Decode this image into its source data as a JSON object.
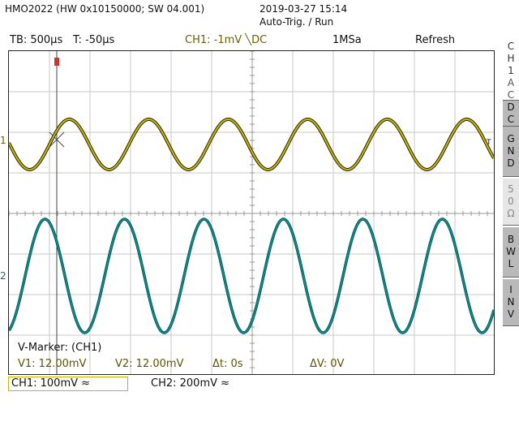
{
  "header": {
    "device": "HMO2022 (HW 0x10150000; SW 04.001)",
    "datetime": "2019-03-27 15:14",
    "trigger_mode": "Auto-Trig. / Run"
  },
  "status_bar": {
    "timebase": "TB: 500µs",
    "trigger_time": "T: -50µs",
    "ch1_trigger": "CH1: -1mV",
    "coupling": "DC",
    "sample_rate": "1MSa",
    "mode": "Refresh"
  },
  "side_panel": {
    "channel_label": "CH1",
    "buttons": [
      "AC",
      "DC",
      "GND",
      "50Ω",
      "BWL",
      "INV"
    ]
  },
  "markers": {
    "title": "V-Marker: (CH1)",
    "v1": "V1: 12.00mV",
    "v2": "V2: 12.00mV",
    "dt": "Δt: 0s",
    "dv": "ΔV: 0V"
  },
  "channels": {
    "ch1_label": "CH1: 100mV ≈",
    "ch2_label": "CH2: 200mV ≈",
    "ch1_marker": "1",
    "ch2_marker": "2",
    "trigger_marker": "T"
  },
  "colors": {
    "ch1": "#c8b400",
    "ch2": "#0d8a8a",
    "grid": "#c8c8c8",
    "trigger_marker": "#cc3333"
  }
}
